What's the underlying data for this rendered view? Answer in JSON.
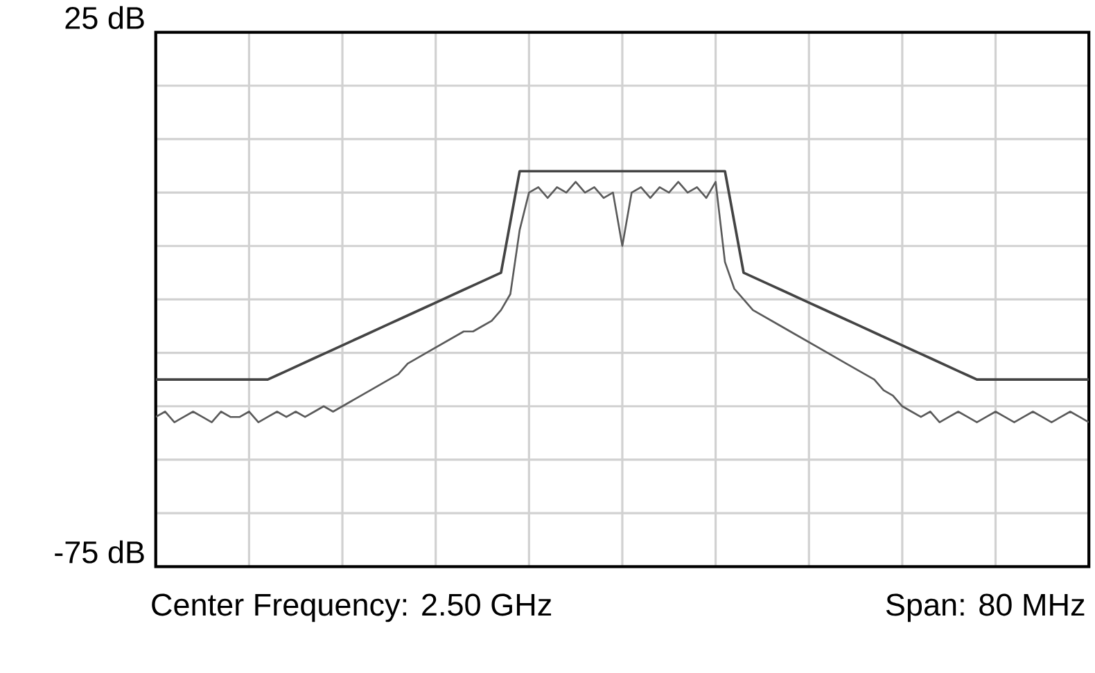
{
  "chart_data": {
    "type": "line",
    "categories": [
      null,
      null,
      null,
      null,
      null,
      null,
      null,
      null,
      null,
      null,
      null,
      null,
      null,
      null,
      null,
      null,
      null,
      null,
      null,
      null,
      null,
      null,
      null,
      null,
      null,
      null,
      null,
      null,
      null,
      null,
      null,
      null,
      null,
      null,
      null,
      null,
      null,
      null,
      null,
      null,
      null,
      null,
      null,
      null,
      null,
      null,
      null,
      null,
      null,
      null,
      null,
      null,
      null,
      null,
      null,
      null,
      null,
      null,
      null,
      null,
      null,
      null,
      null,
      null,
      null,
      null,
      null,
      null,
      null,
      null,
      null,
      null,
      null,
      null,
      null,
      null,
      null,
      null,
      null,
      null,
      null,
      null,
      null,
      null,
      null,
      null,
      null,
      null,
      null,
      null,
      null,
      null,
      null,
      null,
      null,
      null,
      null,
      null,
      null,
      null,
      null
    ],
    "series": [
      {
        "color": "#5a5a5a",
        "values": [
          -47,
          -46,
          -48,
          -47,
          -46,
          -47,
          -48,
          -46,
          -47,
          -47,
          -46,
          -48,
          -47,
          -46,
          -47,
          -46,
          -47,
          -46,
          -45,
          -46,
          -45,
          -44,
          -43,
          -42,
          -41,
          -40,
          -39,
          -37,
          -36,
          -35,
          -34,
          -33,
          -32,
          -31,
          -31,
          -30,
          -29,
          -27,
          -24,
          -12,
          -5,
          -4,
          -6,
          -4,
          -5,
          -3,
          -5,
          -4,
          -6,
          -5,
          -15,
          -5,
          -4,
          -6,
          -4,
          -5,
          -3,
          -5,
          -4,
          -6,
          -3,
          -18,
          -23,
          -25,
          -27,
          -28,
          -29,
          -30,
          -31,
          -32,
          -33,
          -34,
          -35,
          -36,
          -37,
          -38,
          -39,
          -40,
          -42,
          -43,
          -45,
          -46,
          -47,
          -46,
          -48,
          -47,
          -46,
          -47,
          -48,
          -47,
          -46,
          -47,
          -48,
          -47,
          -46,
          -47,
          -48,
          -47,
          -46,
          -47,
          -48
        ]
      },
      {
        "color": "#444444",
        "values": [
          -40,
          -40,
          -40,
          -40,
          -40,
          -40,
          -40,
          -40,
          -40,
          -40,
          -40,
          -40,
          -40,
          -39.2,
          -38.4,
          -37.6,
          -36.8,
          -36,
          -35.2,
          -34.4,
          -33.6,
          -32.8,
          -32,
          -31.2,
          -30.4,
          -29.6,
          -28.8,
          -28,
          -27.2,
          -26.4,
          -25.6,
          -24.8,
          -24,
          -23.2,
          -22.4,
          -21.6,
          -20.8,
          -20,
          -10.5,
          -1,
          -1,
          -1,
          -1,
          -1,
          -1,
          -1,
          -1,
          -1,
          -1,
          -1,
          -1,
          -1,
          -1,
          -1,
          -1,
          -1,
          -1,
          -1,
          -1,
          -1,
          -1,
          -1,
          -10.5,
          -20,
          -20.8,
          -21.6,
          -22.4,
          -23.2,
          -24,
          -24.8,
          -25.6,
          -26.4,
          -27.2,
          -28,
          -28.8,
          -29.6,
          -30.4,
          -31.2,
          -32,
          -32.8,
          -33.6,
          -34.4,
          -35.2,
          -36,
          -36.8,
          -37.6,
          -38.4,
          -39.2,
          -40,
          -40,
          -40,
          -40,
          -40,
          -40,
          -40,
          -40,
          -40,
          -40,
          -40,
          -40,
          -40
        ]
      }
    ],
    "ylim": [
      -75,
      25
    ],
    "yticks": [
      {
        "value": -75,
        "label": "-75 dB"
      },
      {
        "value": -65,
        "label": null
      },
      {
        "value": -55,
        "label": null
      },
      {
        "value": -45,
        "label": null
      },
      {
        "value": -35,
        "label": null
      },
      {
        "value": -25,
        "label": null
      },
      {
        "value": -15,
        "label": null
      },
      {
        "value": -5,
        "label": null
      },
      {
        "value": 5,
        "label": null
      },
      {
        "value": 15,
        "label": null
      },
      {
        "value": 25,
        "label": "25 dB"
      }
    ],
    "grid": true,
    "tick_labels": "y",
    "marker": "none",
    "line_style": "solid",
    "annotations": [
      "Center Frequency: 2.50 GHz",
      "Span: 80 MHz"
    ]
  }
}
